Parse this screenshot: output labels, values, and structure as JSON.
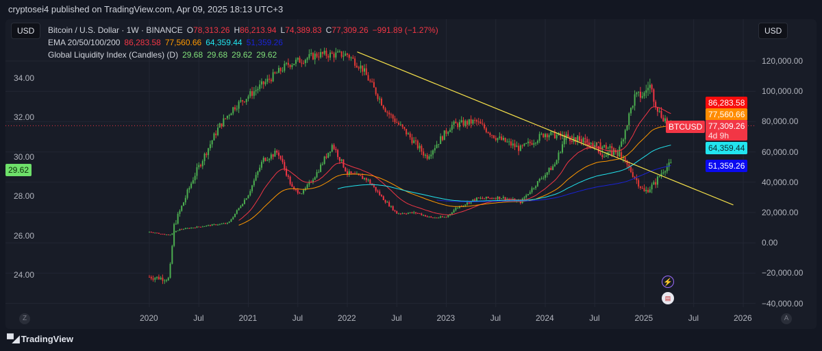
{
  "header": {
    "published": "cryptosei4 published on TradingView.com, Apr 09, 2025 18:13 UTC+3"
  },
  "currency_left": "USD",
  "currency_right": "USD",
  "legend": {
    "symbol": "Bitcoin / U.S. Dollar · 1W · BINANCE",
    "o_label": "O",
    "o": "78,313.26",
    "h_label": "H",
    "h": "86,213.94",
    "l_label": "L",
    "l": "74,389.83",
    "c_label": "C",
    "c": "77,309.26",
    "change": "−991.89 (−1.27%)",
    "ema_label": "EMA 20/50/100/200",
    "ema20": "86,283.58",
    "ema50": "77,560.66",
    "ema100": "64,359.44",
    "ema200": "51,359.26",
    "gli_label": "Global Liquidity Index (Candles) (D)",
    "gli_values": [
      "29.68",
      "29.68",
      "29.62",
      "29.62"
    ]
  },
  "price_labels": {
    "ema20": "86,283.58",
    "ema50": "77,560.66",
    "btc": "77,309.26",
    "btc_countdown": "4d 9h",
    "ticker": "BTCUSD",
    "ema100": "64,359.44",
    "ema200": "51,359.26",
    "gli": "29.62"
  },
  "colors": {
    "up": "#4caf50",
    "down": "#f23645",
    "gli_up": "#4caf50",
    "gli_down": "#e53935",
    "ema20": "#f23645",
    "ema50": "#ff9800",
    "ema100": "#22e5ef",
    "ema200": "#1a23d6",
    "trendline": "#f5e04a",
    "bg": "#181c27"
  },
  "footer": {
    "brand": "TradingView",
    "z": "Z",
    "a": "A"
  },
  "icons": [
    "lightning-icon",
    "us-flag-icon"
  ],
  "chart_data": {
    "type": "candlestick",
    "xticks": [
      "2020",
      "Jul",
      "2021",
      "Jul",
      "2022",
      "Jul",
      "2023",
      "Jul",
      "2024",
      "Jul",
      "2025",
      "Jul",
      "2026"
    ],
    "right_axis": {
      "ticks": [
        "120,000.00",
        "100,000.00",
        "80,000.00",
        "60,000.00",
        "40,000.00",
        "20,000.00",
        "0.00",
        "−20,000.00",
        "−40,000.00"
      ],
      "values": [
        120000,
        100000,
        80000,
        60000,
        40000,
        20000,
        0,
        -20000,
        -40000
      ]
    },
    "left_axis": {
      "ticks": [
        "34.00",
        "32.00",
        "30.00",
        "28.00",
        "26.00",
        "24.00"
      ],
      "values": [
        34,
        32,
        30,
        28,
        26,
        24
      ]
    },
    "series": [
      {
        "name": "Bitcoin / U.S. Dollar",
        "axis": "right",
        "anchors": [
          [
            2020.0,
            7200
          ],
          [
            2020.2,
            5000
          ],
          [
            2020.3,
            8800
          ],
          [
            2020.6,
            11500
          ],
          [
            2020.8,
            13000
          ],
          [
            2021.0,
            32000
          ],
          [
            2021.15,
            55000
          ],
          [
            2021.3,
            60000
          ],
          [
            2021.45,
            35000
          ],
          [
            2021.55,
            33000
          ],
          [
            2021.7,
            47000
          ],
          [
            2021.85,
            65000
          ],
          [
            2022.0,
            46000
          ],
          [
            2022.2,
            42000
          ],
          [
            2022.35,
            30000
          ],
          [
            2022.5,
            19500
          ],
          [
            2022.7,
            19800
          ],
          [
            2022.85,
            16500
          ],
          [
            2023.0,
            17000
          ],
          [
            2023.1,
            23000
          ],
          [
            2023.3,
            29000
          ],
          [
            2023.55,
            30000
          ],
          [
            2023.75,
            27000
          ],
          [
            2023.95,
            42000
          ],
          [
            2024.1,
            52000
          ],
          [
            2024.2,
            70000
          ],
          [
            2024.45,
            66000
          ],
          [
            2024.6,
            57000
          ],
          [
            2024.75,
            62000
          ],
          [
            2024.9,
            96000
          ],
          [
            2025.0,
            98000
          ],
          [
            2025.05,
            105000
          ],
          [
            2025.15,
            86000
          ],
          [
            2025.27,
            77309
          ]
        ]
      },
      {
        "name": "Global Liquidity Index",
        "axis": "left",
        "anchors": [
          [
            2020.0,
            23.9
          ],
          [
            2020.2,
            23.8
          ],
          [
            2020.25,
            26.5
          ],
          [
            2020.45,
            29.0
          ],
          [
            2020.7,
            31.5
          ],
          [
            2020.85,
            32.5
          ],
          [
            2021.1,
            33.5
          ],
          [
            2021.4,
            34.7
          ],
          [
            2021.7,
            35.2
          ],
          [
            2022.0,
            35.2
          ],
          [
            2022.15,
            34.5
          ],
          [
            2022.4,
            32.3
          ],
          [
            2022.6,
            31.2
          ],
          [
            2022.8,
            30.0
          ],
          [
            2023.05,
            31.6
          ],
          [
            2023.3,
            31.8
          ],
          [
            2023.5,
            31.0
          ],
          [
            2023.75,
            30.4
          ],
          [
            2024.0,
            31.2
          ],
          [
            2024.3,
            30.9
          ],
          [
            2024.5,
            30.6
          ],
          [
            2024.7,
            30.4
          ],
          [
            2024.85,
            29.4
          ],
          [
            2025.0,
            28.2
          ],
          [
            2025.1,
            28.6
          ],
          [
            2025.2,
            29.4
          ],
          [
            2025.27,
            29.62
          ]
        ]
      }
    ],
    "ema_periods": [
      20,
      50,
      100,
      200
    ],
    "trendline": [
      [
        2022.1,
        126000
      ],
      [
        2025.9,
        25000
      ]
    ],
    "current_price": 77309.26
  }
}
